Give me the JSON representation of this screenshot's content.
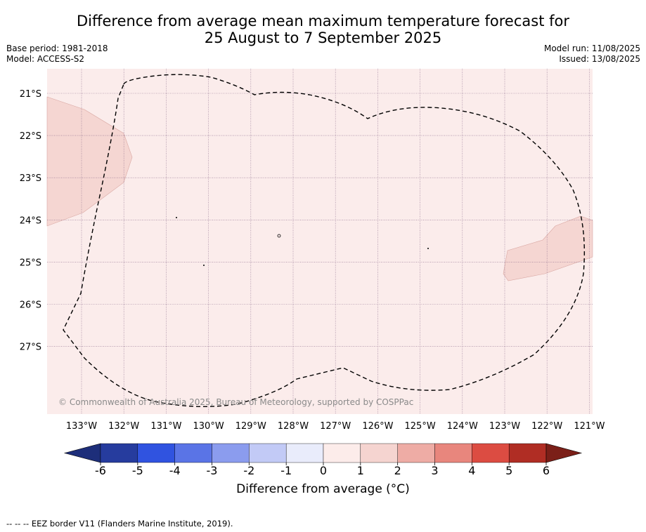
{
  "title_line1": "Difference from average mean maximum temperature forecast for",
  "title_line2": "25 August to 7 September 2025",
  "base_period": "Base period: 1981-2018",
  "model": "Model: ACCESS-S2",
  "model_run": "Model run: 11/08/2025",
  "issued": "Issued: 13/08/2025",
  "copyright": "© Commonwealth of Australia 2025, Bureau of Meteorology, supported by COSPPac",
  "lon_labels": [
    "133°W",
    "132°W",
    "131°W",
    "130°W",
    "129°W",
    "128°W",
    "127°W",
    "126°W",
    "125°W",
    "124°W",
    "123°W",
    "122°W",
    "121°W"
  ],
  "lat_labels": [
    "21°S",
    "22°S",
    "23°S",
    "24°S",
    "25°S",
    "26°S",
    "27°S"
  ],
  "colorbar": {
    "title": "Difference from average (°C)",
    "ticks": [
      "-6",
      "-5",
      "-4",
      "-3",
      "-2",
      "-1",
      "0",
      "1",
      "2",
      "3",
      "4",
      "5",
      "6"
    ],
    "colors": [
      "#263c9e",
      "#3053e0",
      "#5a74e6",
      "#8b9cee",
      "#c2caf6",
      "#e9ecfb",
      "#fcecea",
      "#f5d4d0",
      "#eeaca5",
      "#e8867d",
      "#dc4c42",
      "#b02d24"
    ],
    "under_color": "#1d2e7a",
    "over_color": "#7b1f18"
  },
  "map_colors": {
    "background": "#fbeceb",
    "anomaly_1_2": "#f5d6d2",
    "grid": "#8a6a8a"
  },
  "footer": "-- -- -- EEZ border V11 (Flanders Marine Institute, 2019)."
}
